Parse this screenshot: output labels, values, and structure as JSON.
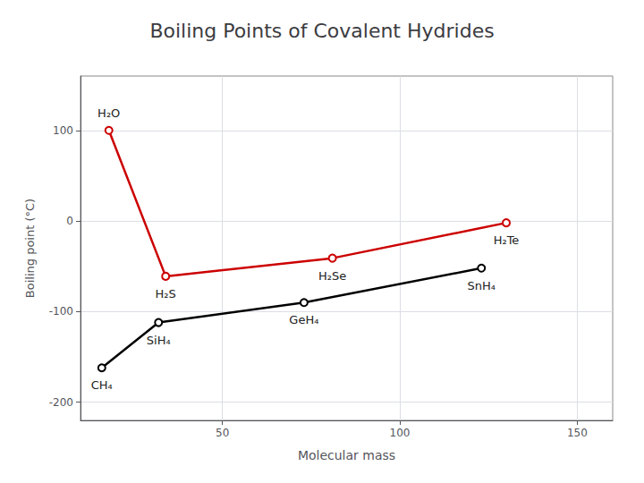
{
  "chart_data": {
    "type": "line",
    "title": "Boiling Points of Covalent Hydrides",
    "xlabel": "Molecular mass",
    "ylabel": "Boiling point (°C)",
    "xlim": [
      10,
      160
    ],
    "xticks": [
      50,
      100,
      150
    ],
    "ylim": [
      -220,
      160
    ],
    "yticks": [
      -200,
      -100,
      0,
      100
    ],
    "grid": true,
    "marker": "circle",
    "series": [
      {
        "color": "#CC0000",
        "x": [
          18,
          34,
          81,
          130
        ],
        "values": [
          100,
          -61,
          -41,
          -2
        ],
        "annotations": [
          "H₂O",
          "H₂S",
          "H₂Se",
          "H₂Te"
        ]
      },
      {
        "color": "#000000",
        "x": [
          16,
          32,
          73,
          123
        ],
        "values": [
          -162,
          -112,
          -90,
          -52
        ],
        "annotations": [
          "CH₄",
          "SiH₄",
          "GeH₄",
          "SnH₄"
        ]
      }
    ]
  }
}
